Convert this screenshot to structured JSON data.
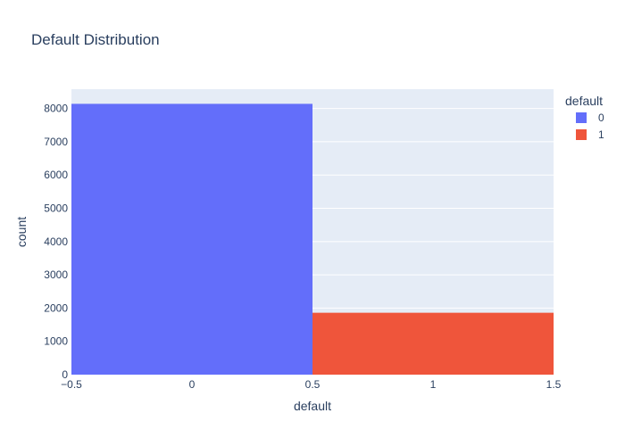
{
  "chart_data": {
    "type": "bar",
    "title": "Default Distribution",
    "xlabel": "default",
    "ylabel": "count",
    "categories": [
      "0",
      "1"
    ],
    "x_ticks": [
      "−0.5",
      "0",
      "0.5",
      "1",
      "1.5"
    ],
    "y_ticks": [
      "0",
      "1000",
      "2000",
      "3000",
      "4000",
      "5000",
      "6000",
      "7000",
      "8000"
    ],
    "xlim": [
      -0.5,
      1.5
    ],
    "ylim": [
      0,
      8580
    ],
    "grid": true,
    "legend_placement": "top-right",
    "legend_title": "default",
    "series": [
      {
        "name": "0",
        "x": 0,
        "value": 8140,
        "color": "#636efa"
      },
      {
        "name": "1",
        "x": 1,
        "value": 1860,
        "color": "#ef553b"
      }
    ],
    "plot_background": "#e5ecf6",
    "grid_color": "#ffffff"
  }
}
